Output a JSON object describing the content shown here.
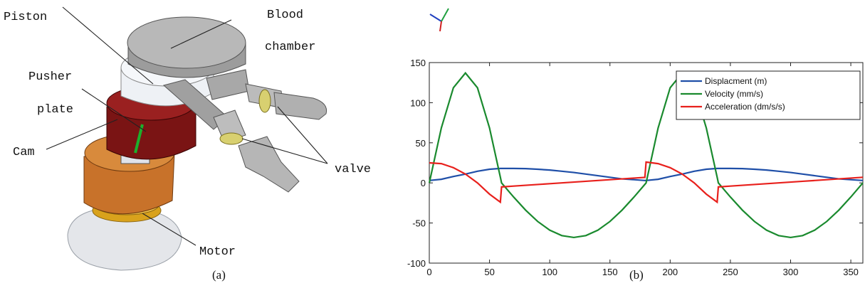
{
  "panel_a": {
    "labels": {
      "piston": "Piston",
      "blood_chamber": [
        "Blood",
        "chamber"
      ],
      "pusher_plate": [
        "Pusher",
        "plate"
      ],
      "cam": "Cam",
      "valve": "valve",
      "motor": "Motor"
    },
    "caption": "(a)"
  },
  "panel_b": {
    "caption": "(b)"
  },
  "chart_data": {
    "type": "line",
    "x": [
      0,
      10,
      20,
      30,
      40,
      50,
      59,
      60,
      70,
      80,
      90,
      100,
      110,
      120,
      130,
      140,
      150,
      160,
      170,
      179,
      180,
      190,
      200,
      210,
      220,
      230,
      239,
      240,
      250,
      260,
      270,
      280,
      290,
      300,
      310,
      320,
      330,
      340,
      350,
      360
    ],
    "series": [
      {
        "name": "Displacment (m)",
        "color": "#1f4fa8",
        "values": [
          3,
          4.5,
          8,
          11,
          14.5,
          17,
          18,
          18,
          18,
          17.8,
          17,
          16,
          14.5,
          13,
          11,
          9,
          7,
          5,
          4,
          3,
          3,
          4.5,
          8,
          11,
          14.5,
          17,
          18,
          18,
          18,
          17.8,
          17,
          16,
          14.5,
          13,
          11,
          9,
          7,
          5,
          4,
          3
        ]
      },
      {
        "name": "Velocity (mm/s)",
        "color": "#1a8a2e",
        "values": [
          0,
          68.5,
          118.6,
          137,
          118.6,
          68.5,
          7.2,
          0,
          -17.6,
          -34,
          -48.1,
          -58.9,
          -65.7,
          -68,
          -65.7,
          -58.9,
          -48.1,
          -34,
          -17.6,
          -1.8,
          0,
          68.5,
          118.6,
          137,
          118.6,
          68.5,
          7.2,
          0,
          -17.6,
          -34,
          -48.1,
          -58.9,
          -65.7,
          -68,
          -65.7,
          -58.9,
          -48.1,
          -34,
          -17.6,
          0
        ]
      },
      {
        "name": "Acceleration (dm/s/s)",
        "color": "#e8201c",
        "values": [
          25,
          24,
          19,
          11,
          0,
          -14,
          -24,
          -5,
          -4,
          -3,
          -2,
          -1,
          0,
          1,
          2,
          3,
          4,
          5,
          6,
          6.9,
          26,
          24,
          19,
          11,
          0,
          -14,
          -24,
          -5,
          -4,
          -3,
          -2,
          -1,
          0,
          1,
          2,
          3,
          4,
          5,
          6,
          7
        ]
      }
    ],
    "xlim": [
      0,
      360
    ],
    "ylim": [
      -100,
      150
    ],
    "xticks": [
      0,
      50,
      100,
      150,
      200,
      250,
      300,
      350
    ],
    "yticks": [
      -100,
      -50,
      0,
      50,
      100,
      150
    ],
    "legend": "upper right"
  }
}
